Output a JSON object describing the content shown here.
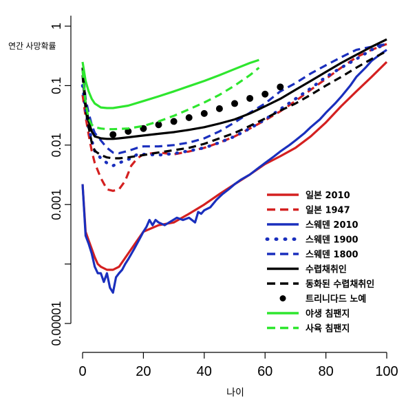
{
  "chart_data": {
    "type": "line",
    "xlabel": "나이",
    "ylabel": "연간 사망확률",
    "x_scale": "linear",
    "y_scale": "log",
    "xlim": [
      0,
      100
    ],
    "ylim": [
      6e-06,
      1.5
    ],
    "x_ticks": [
      0,
      20,
      40,
      60,
      80,
      100
    ],
    "x_tick_labels": [
      "0",
      "20",
      "40",
      "60",
      "80",
      "100"
    ],
    "y_ticks": [
      1e-05,
      0.0001,
      0.001,
      0.01,
      0.1,
      1
    ],
    "y_tick_labels": [
      "0.00001",
      "",
      "0.001",
      "0.01",
      "0.1",
      "1"
    ],
    "grid": false,
    "legend_position": "bottom-right",
    "series": [
      {
        "name": "일본 2010",
        "color": "#d42020",
        "style": "solid",
        "x": [
          0,
          1,
          2,
          3,
          4,
          5,
          6,
          8,
          10,
          12,
          15,
          18,
          20,
          25,
          30,
          35,
          40,
          45,
          50,
          55,
          60,
          65,
          70,
          75,
          80,
          85,
          90,
          95,
          100
        ],
        "y": [
          0.0022,
          0.00035,
          0.00025,
          0.00018,
          0.00013,
          0.0001,
          9e-05,
          8e-05,
          8e-05,
          9e-05,
          0.00015,
          0.00025,
          0.00035,
          0.00045,
          0.0005,
          0.0007,
          0.001,
          0.0015,
          0.0022,
          0.0032,
          0.0048,
          0.0065,
          0.009,
          0.014,
          0.024,
          0.045,
          0.08,
          0.14,
          0.25
        ]
      },
      {
        "name": "일본 1947",
        "color": "#d42020",
        "style": "dashed",
        "x": [
          0,
          1,
          2,
          3,
          4,
          6,
          8,
          10,
          12,
          14,
          16,
          18,
          20,
          25,
          30,
          35,
          40,
          45,
          50,
          55,
          60,
          65,
          70,
          75,
          80,
          85,
          90,
          95,
          100
        ],
        "y": [
          0.07,
          0.03,
          0.015,
          0.008,
          0.005,
          0.0028,
          0.0018,
          0.0017,
          0.0018,
          0.0025,
          0.0045,
          0.006,
          0.007,
          0.0075,
          0.007,
          0.0078,
          0.009,
          0.011,
          0.014,
          0.019,
          0.026,
          0.037,
          0.055,
          0.085,
          0.13,
          0.2,
          0.3,
          0.4,
          0.5
        ]
      },
      {
        "name": "스웨덴 2010",
        "color": "#1a2fbd",
        "style": "solid",
        "x": [
          0,
          1,
          2,
          3,
          4,
          5,
          6,
          7,
          8,
          9,
          10,
          11,
          12,
          13,
          14,
          15,
          17,
          19,
          20,
          21,
          22,
          23,
          24,
          25,
          27,
          29,
          31,
          33,
          35,
          37,
          38,
          39,
          40,
          42,
          44,
          46,
          48,
          50,
          52,
          55,
          58,
          60,
          63,
          65,
          68,
          70,
          73,
          75,
          78,
          80,
          83,
          85,
          88,
          90,
          93,
          95,
          98,
          100
        ],
        "y": [
          0.0022,
          0.0003,
          0.00022,
          0.00015,
          9e-05,
          7e-05,
          7e-05,
          5e-05,
          7e-05,
          4e-05,
          3.3e-05,
          6e-05,
          7e-05,
          8e-05,
          0.0001,
          0.00012,
          0.00018,
          0.00028,
          0.00035,
          0.00042,
          0.00055,
          0.00045,
          0.00055,
          0.0005,
          0.00045,
          0.00052,
          0.0006,
          0.00055,
          0.0006,
          0.0005,
          0.00075,
          0.0007,
          0.0008,
          0.0009,
          0.0012,
          0.0015,
          0.0018,
          0.0022,
          0.0026,
          0.0032,
          0.0042,
          0.005,
          0.0065,
          0.0078,
          0.01,
          0.012,
          0.016,
          0.02,
          0.027,
          0.035,
          0.05,
          0.065,
          0.1,
          0.14,
          0.2,
          0.26,
          0.34,
          0.4
        ]
      },
      {
        "name": "스웨덴 1900",
        "color": "#1a2fbd",
        "style": "dotted",
        "x": [
          0,
          1,
          2,
          3,
          4,
          6,
          8,
          10,
          12,
          14,
          16,
          18,
          20,
          25,
          30,
          35,
          40,
          45,
          50,
          55,
          60,
          65,
          70,
          75,
          80,
          85,
          90,
          95,
          100
        ],
        "y": [
          0.1,
          0.04,
          0.02,
          0.012,
          0.008,
          0.006,
          0.005,
          0.0045,
          0.005,
          0.0055,
          0.006,
          0.007,
          0.007,
          0.0068,
          0.0072,
          0.008,
          0.009,
          0.011,
          0.014,
          0.019,
          0.027,
          0.04,
          0.06,
          0.09,
          0.14,
          0.2,
          0.28,
          0.4,
          0.5
        ]
      },
      {
        "name": "스웨덴 1800",
        "color": "#1a2fbd",
        "style": "dashed",
        "x": [
          0,
          1,
          2,
          3,
          4,
          6,
          8,
          10,
          12,
          15,
          18,
          20,
          25,
          30,
          35,
          40,
          45,
          50,
          55,
          60,
          65,
          70,
          75,
          80,
          85,
          90,
          95,
          100
        ],
        "y": [
          0.2,
          0.06,
          0.035,
          0.022,
          0.016,
          0.012,
          0.009,
          0.0075,
          0.0073,
          0.008,
          0.009,
          0.0095,
          0.0095,
          0.01,
          0.011,
          0.013,
          0.017,
          0.024,
          0.035,
          0.05,
          0.08,
          0.11,
          0.16,
          0.22,
          0.3,
          0.4,
          0.45,
          0.5
        ]
      },
      {
        "name": "수렵채취인",
        "color": "#000000",
        "style": "solid",
        "x": [
          0,
          1,
          2,
          3,
          4,
          5,
          6,
          8,
          10,
          12,
          15,
          20,
          25,
          30,
          35,
          40,
          45,
          50,
          55,
          60,
          65,
          70,
          75,
          80,
          85,
          90,
          95,
          100
        ],
        "y": [
          0.2,
          0.05,
          0.025,
          0.017,
          0.014,
          0.0135,
          0.013,
          0.0127,
          0.0127,
          0.013,
          0.0135,
          0.0145,
          0.0155,
          0.0165,
          0.018,
          0.02,
          0.023,
          0.027,
          0.034,
          0.045,
          0.06,
          0.085,
          0.12,
          0.17,
          0.24,
          0.33,
          0.45,
          0.6
        ]
      },
      {
        "name": "동화된 수렵채취인",
        "color": "#000000",
        "style": "dashed",
        "x": [
          0,
          1,
          2,
          3,
          4,
          6,
          8,
          10,
          12,
          15,
          20,
          25,
          30,
          35,
          40,
          45,
          50,
          55,
          60,
          65,
          70,
          75,
          80,
          85,
          90,
          95,
          100
        ],
        "y": [
          0.15,
          0.04,
          0.02,
          0.011,
          0.008,
          0.0068,
          0.0062,
          0.006,
          0.006,
          0.0062,
          0.0068,
          0.0075,
          0.0082,
          0.009,
          0.0105,
          0.013,
          0.016,
          0.021,
          0.028,
          0.038,
          0.05,
          0.07,
          0.1,
          0.14,
          0.2,
          0.28,
          0.38
        ]
      },
      {
        "name": "트리니다드 노예",
        "color": "#000000",
        "style": "dots",
        "x": [
          10,
          15,
          20,
          25,
          30,
          35,
          40,
          45,
          50,
          55,
          60,
          65
        ],
        "y": [
          0.015,
          0.017,
          0.019,
          0.022,
          0.025,
          0.029,
          0.034,
          0.041,
          0.05,
          0.061,
          0.072,
          0.095
        ]
      },
      {
        "name": "야생 침팬지",
        "color": "#2ee62e",
        "style": "solid",
        "x": [
          0,
          1,
          2,
          3,
          4,
          6,
          8,
          10,
          15,
          20,
          25,
          30,
          35,
          40,
          45,
          50,
          55,
          58
        ],
        "y": [
          0.25,
          0.12,
          0.08,
          0.06,
          0.05,
          0.043,
          0.042,
          0.042,
          0.046,
          0.055,
          0.066,
          0.08,
          0.098,
          0.12,
          0.15,
          0.19,
          0.24,
          0.27
        ]
      },
      {
        "name": "사육 침팬지",
        "color": "#2ee62e",
        "style": "dashed",
        "x": [
          0,
          1,
          2,
          3,
          4,
          6,
          8,
          10,
          15,
          20,
          25,
          30,
          35,
          40,
          45,
          50,
          55,
          58
        ],
        "y": [
          0.18,
          0.05,
          0.028,
          0.022,
          0.02,
          0.019,
          0.0185,
          0.0185,
          0.019,
          0.021,
          0.025,
          0.031,
          0.04,
          0.052,
          0.07,
          0.1,
          0.15,
          0.2
        ]
      }
    ]
  }
}
